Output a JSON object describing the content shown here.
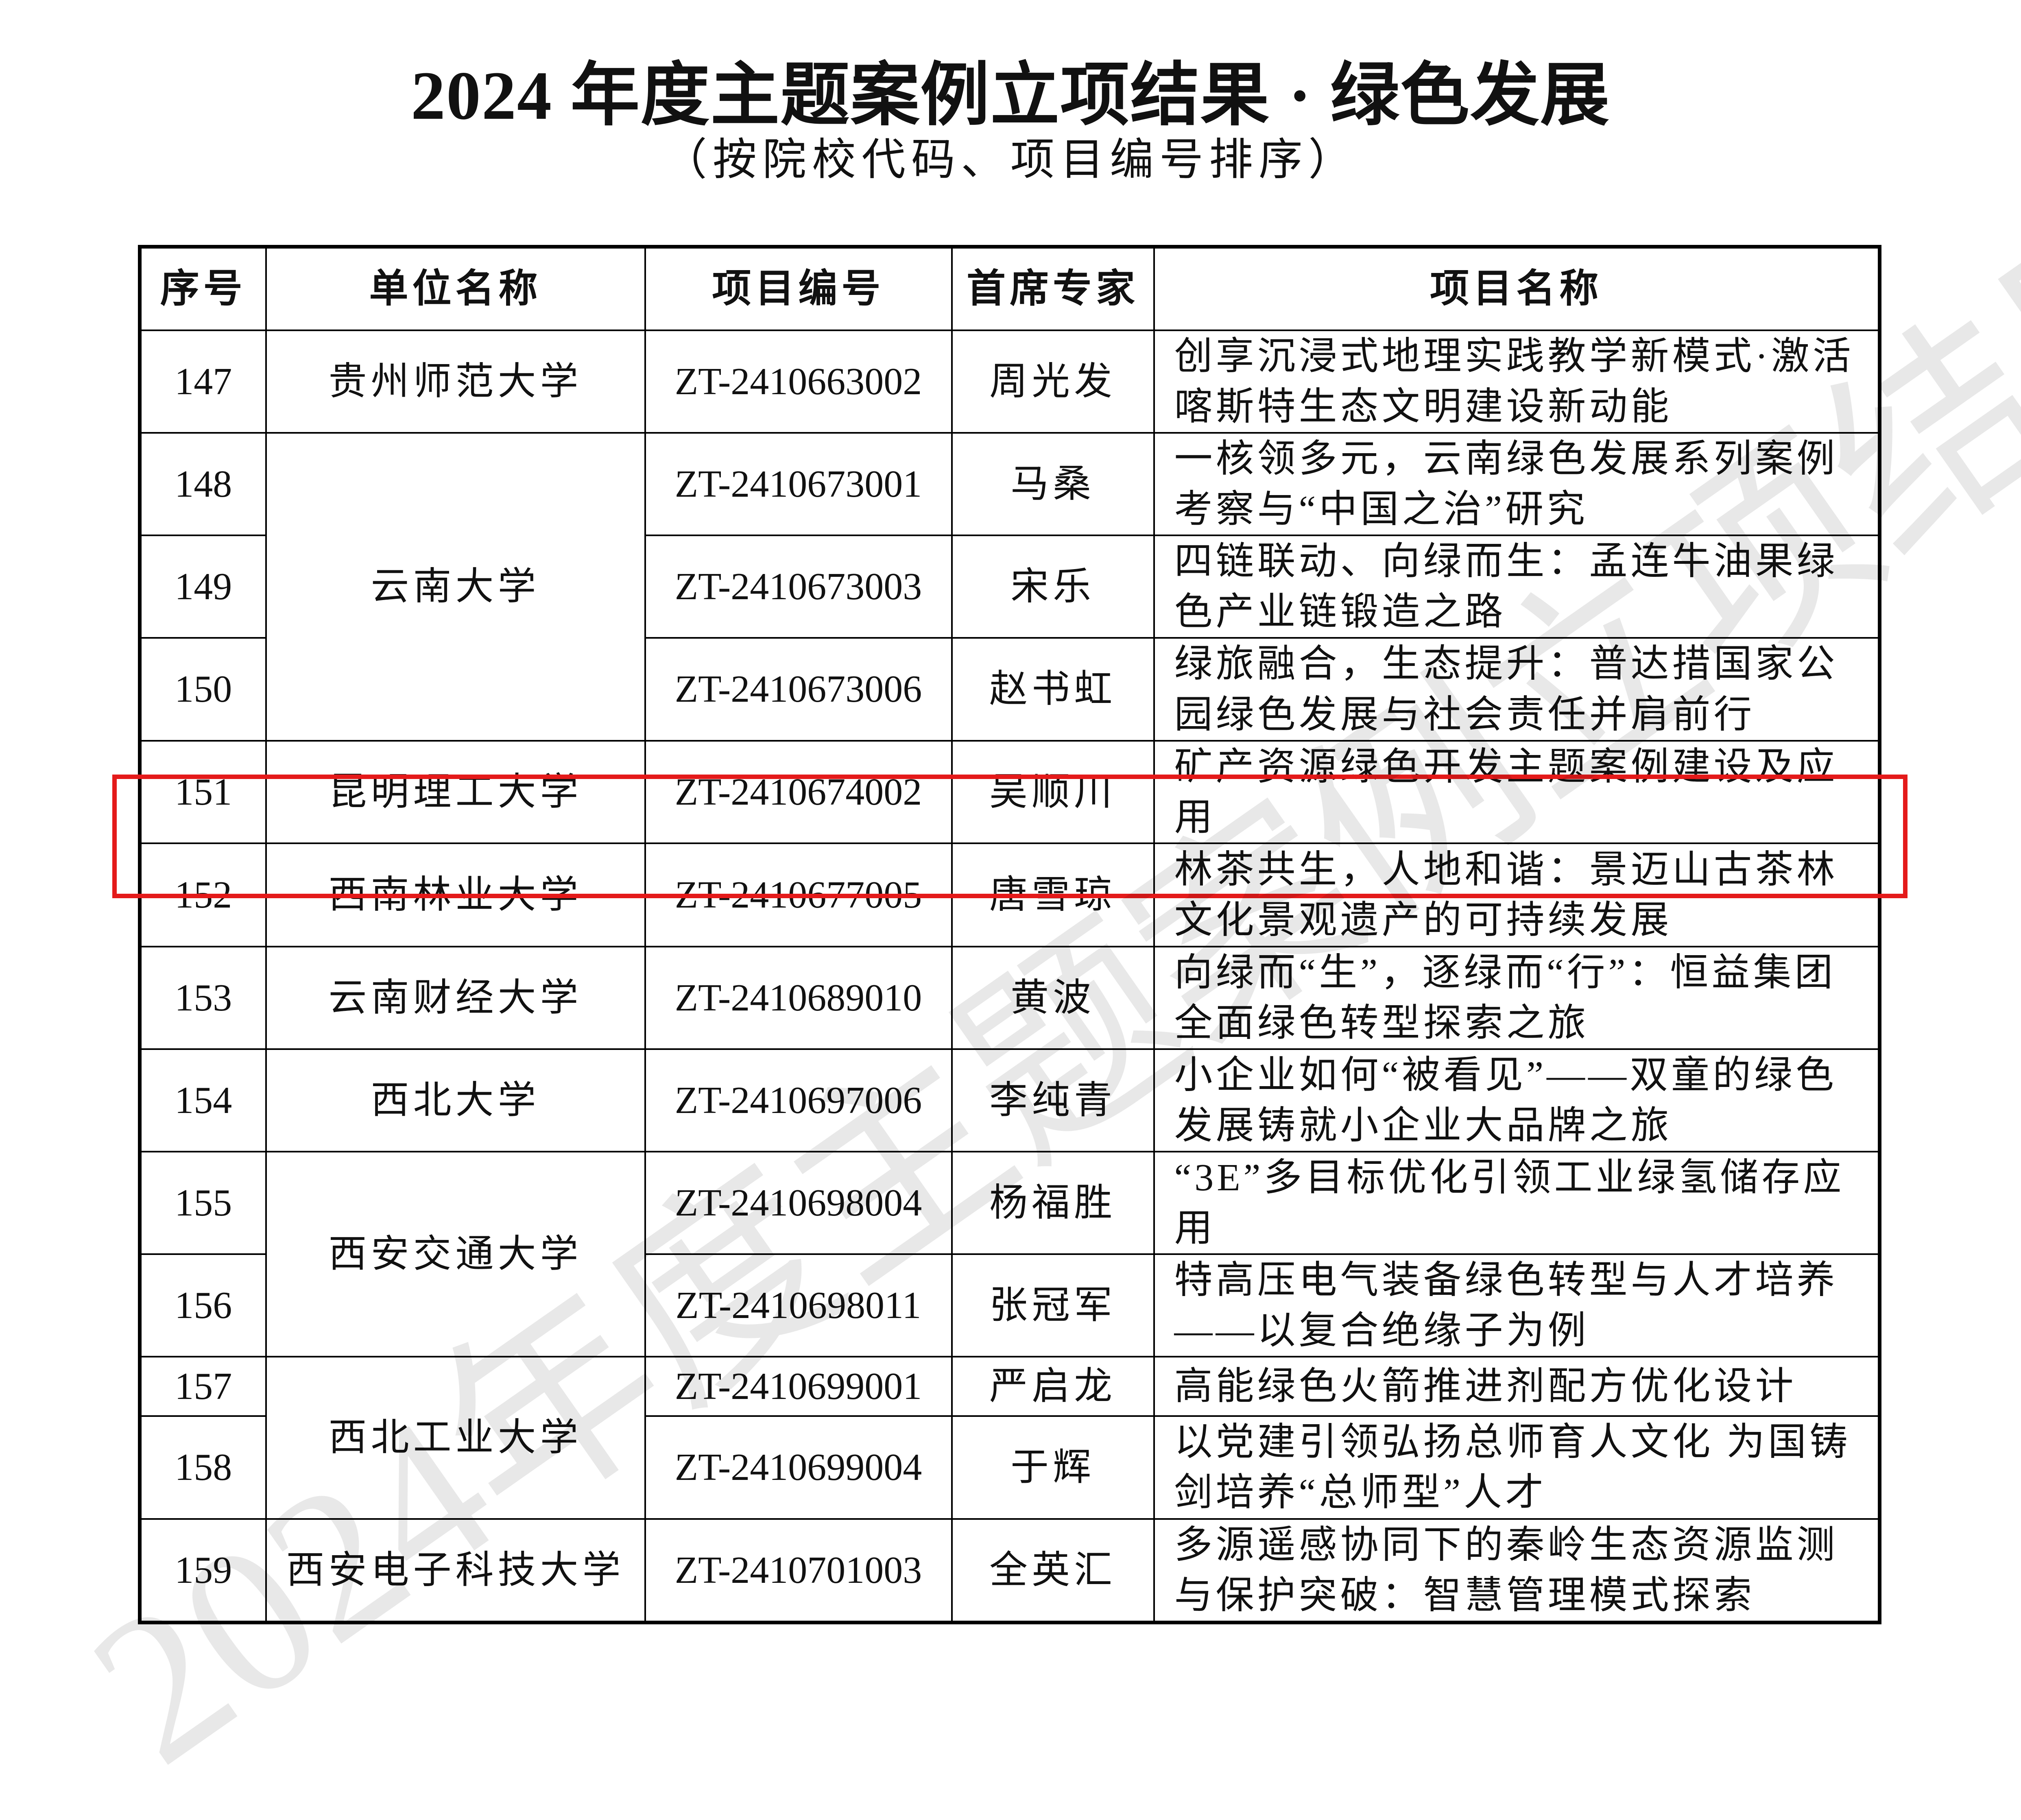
{
  "title": "2024 年度主题案例立项结果 · 绿色发展",
  "subtitle": "（按院校代码、项目编号排序）",
  "watermark": "2024年度主题案例立项结果",
  "highlight_color": "#e41a1a",
  "table": {
    "headers": [
      "序号",
      "单位名称",
      "项目编号",
      "首席专家",
      "项目名称"
    ],
    "rows": [
      {
        "no": "147",
        "unit": "贵州师范大学",
        "code": "ZT-2410663002",
        "lead": "周光发",
        "name": "创享沉浸式地理实践教学新模式·激活喀斯特生态文明建设新动能"
      },
      {
        "no": "148",
        "unit": "云南大学",
        "code": "ZT-2410673001",
        "lead": "马桑",
        "name": "一核领多元，云南绿色发展系列案例考察与“中国之治”研究"
      },
      {
        "no": "149",
        "unit": "",
        "code": "ZT-2410673003",
        "lead": "宋乐",
        "name": "四链联动、向绿而生：孟连牛油果绿色产业链锻造之路"
      },
      {
        "no": "150",
        "unit": "",
        "code": "ZT-2410673006",
        "lead": "赵书虹",
        "name": "绿旅融合，生态提升：普达措国家公园绿色发展与社会责任并肩前行"
      },
      {
        "no": "151",
        "unit": "昆明理工大学",
        "code": "ZT-2410674002",
        "lead": "吴顺川",
        "name": "矿产资源绿色开发主题案例建设及应用"
      },
      {
        "no": "152",
        "unit": "西南林业大学",
        "code": "ZT-2410677005",
        "lead": "唐雪琼",
        "name": "林茶共生，人地和谐：景迈山古茶林文化景观遗产的可持续发展"
      },
      {
        "no": "153",
        "unit": "云南财经大学",
        "code": "ZT-2410689010",
        "lead": "黄波",
        "name": "向绿而“生”，逐绿而“行”：恒益集团全面绿色转型探索之旅"
      },
      {
        "no": "154",
        "unit": "西北大学",
        "code": "ZT-2410697006",
        "lead": "李纯青",
        "name": "小企业如何“被看见”——双童的绿色发展铸就小企业大品牌之旅"
      },
      {
        "no": "155",
        "unit": "西安交通大学",
        "code": "ZT-2410698004",
        "lead": "杨福胜",
        "name": "“3E”多目标优化引领工业绿氢储存应用"
      },
      {
        "no": "156",
        "unit": "",
        "code": "ZT-2410698011",
        "lead": "张冠军",
        "name": "特高压电气装备绿色转型与人才培养——以复合绝缘子为例"
      },
      {
        "no": "157",
        "unit": "西北工业大学",
        "code": "ZT-2410699001",
        "lead": "严启龙",
        "name": "高能绿色火箭推进剂配方优化设计"
      },
      {
        "no": "158",
        "unit": "",
        "code": "ZT-2410699004",
        "lead": "于辉",
        "name": "以党建引领弘扬总师育人文化 为国铸剑培养“总师型”人才"
      },
      {
        "no": "159",
        "unit": "西安电子科技大学",
        "code": "ZT-2410701003",
        "lead": "全英汇",
        "name": "多源遥感协同下的秦岭生态资源监测与保护突破：智慧管理模式探索"
      }
    ]
  }
}
